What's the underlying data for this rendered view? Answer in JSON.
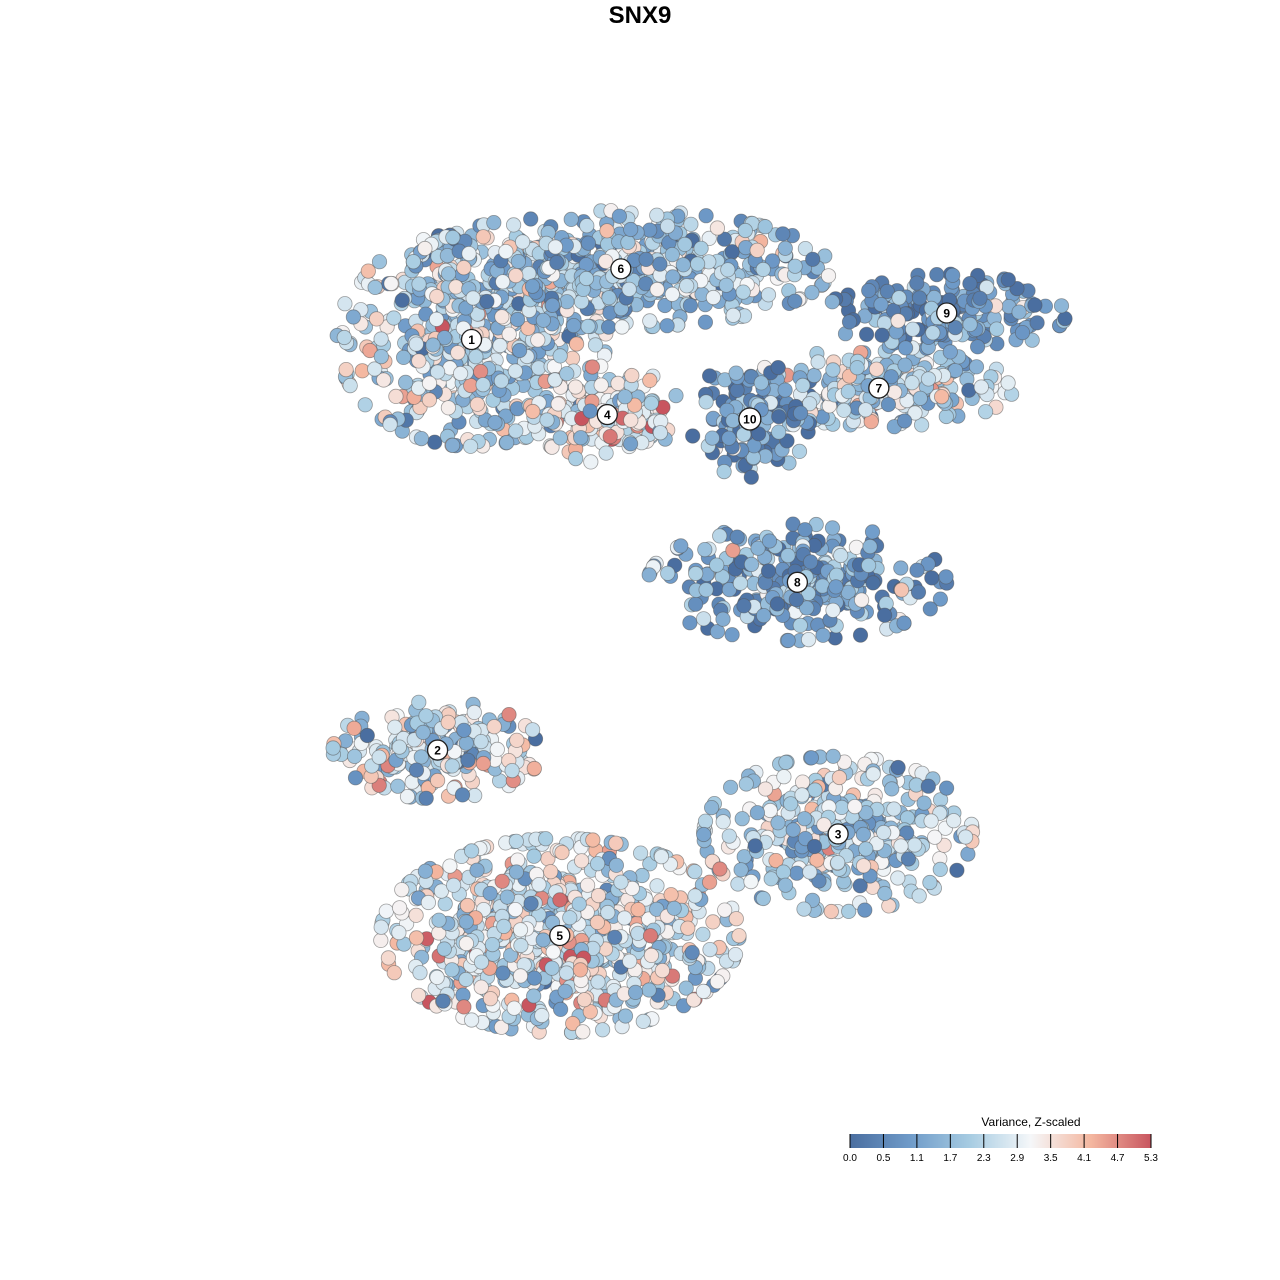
{
  "chart_data": {
    "type": "scatter",
    "title": "SNX9",
    "xlabel": "",
    "ylabel": "",
    "grid": false,
    "legend": {
      "title": "Variance, Z-scaled",
      "position": "bottom-right",
      "ticks": [
        "0.0",
        "0.5",
        "1.1",
        "1.7",
        "2.3",
        "2.9",
        "3.5",
        "4.1",
        "4.7",
        "5.3"
      ],
      "range": [
        0.0,
        5.3
      ],
      "colors": [
        "#4a6ea0",
        "#6f9bc9",
        "#a7cce2",
        "#f5f7f9",
        "#f4b7a0",
        "#c8555f"
      ]
    },
    "clusters": [
      {
        "label": "1",
        "x": 0.15,
        "y": 0.7,
        "spread_x": 0.09,
        "spread_y": 0.11,
        "mean_value": 2.3,
        "n": 520
      },
      {
        "label": "2",
        "x": 0.1,
        "y": -0.23,
        "spread_x": 0.07,
        "spread_y": 0.05,
        "mean_value": 2.6,
        "n": 230
      },
      {
        "label": "3",
        "x": 0.69,
        "y": -0.42,
        "spread_x": 0.09,
        "spread_y": 0.08,
        "mean_value": 2.1,
        "n": 360
      },
      {
        "label": "4",
        "x": 0.35,
        "y": 0.53,
        "spread_x": 0.05,
        "spread_y": 0.05,
        "mean_value": 3.0,
        "n": 200
      },
      {
        "label": "5",
        "x": 0.28,
        "y": -0.65,
        "spread_x": 0.12,
        "spread_y": 0.1,
        "mean_value": 2.8,
        "n": 780
      },
      {
        "label": "6",
        "x": 0.37,
        "y": 0.86,
        "spread_x": 0.14,
        "spread_y": 0.06,
        "mean_value": 1.9,
        "n": 600
      },
      {
        "label": "7",
        "x": 0.75,
        "y": 0.59,
        "spread_x": 0.09,
        "spread_y": 0.04,
        "mean_value": 2.4,
        "n": 260
      },
      {
        "label": "8",
        "x": 0.63,
        "y": 0.15,
        "spread_x": 0.1,
        "spread_y": 0.06,
        "mean_value": 1.2,
        "n": 300
      },
      {
        "label": "9",
        "x": 0.85,
        "y": 0.76,
        "spread_x": 0.08,
        "spread_y": 0.04,
        "mean_value": 1.0,
        "n": 200
      },
      {
        "label": "10",
        "x": 0.56,
        "y": 0.52,
        "spread_x": 0.04,
        "spread_y": 0.06,
        "mean_value": 0.9,
        "n": 140
      }
    ],
    "x_range": [
      -0.25,
      1.12
    ],
    "y_range": [
      -1.0,
      1.05
    ],
    "value_range": [
      0.0,
      5.3
    ]
  }
}
